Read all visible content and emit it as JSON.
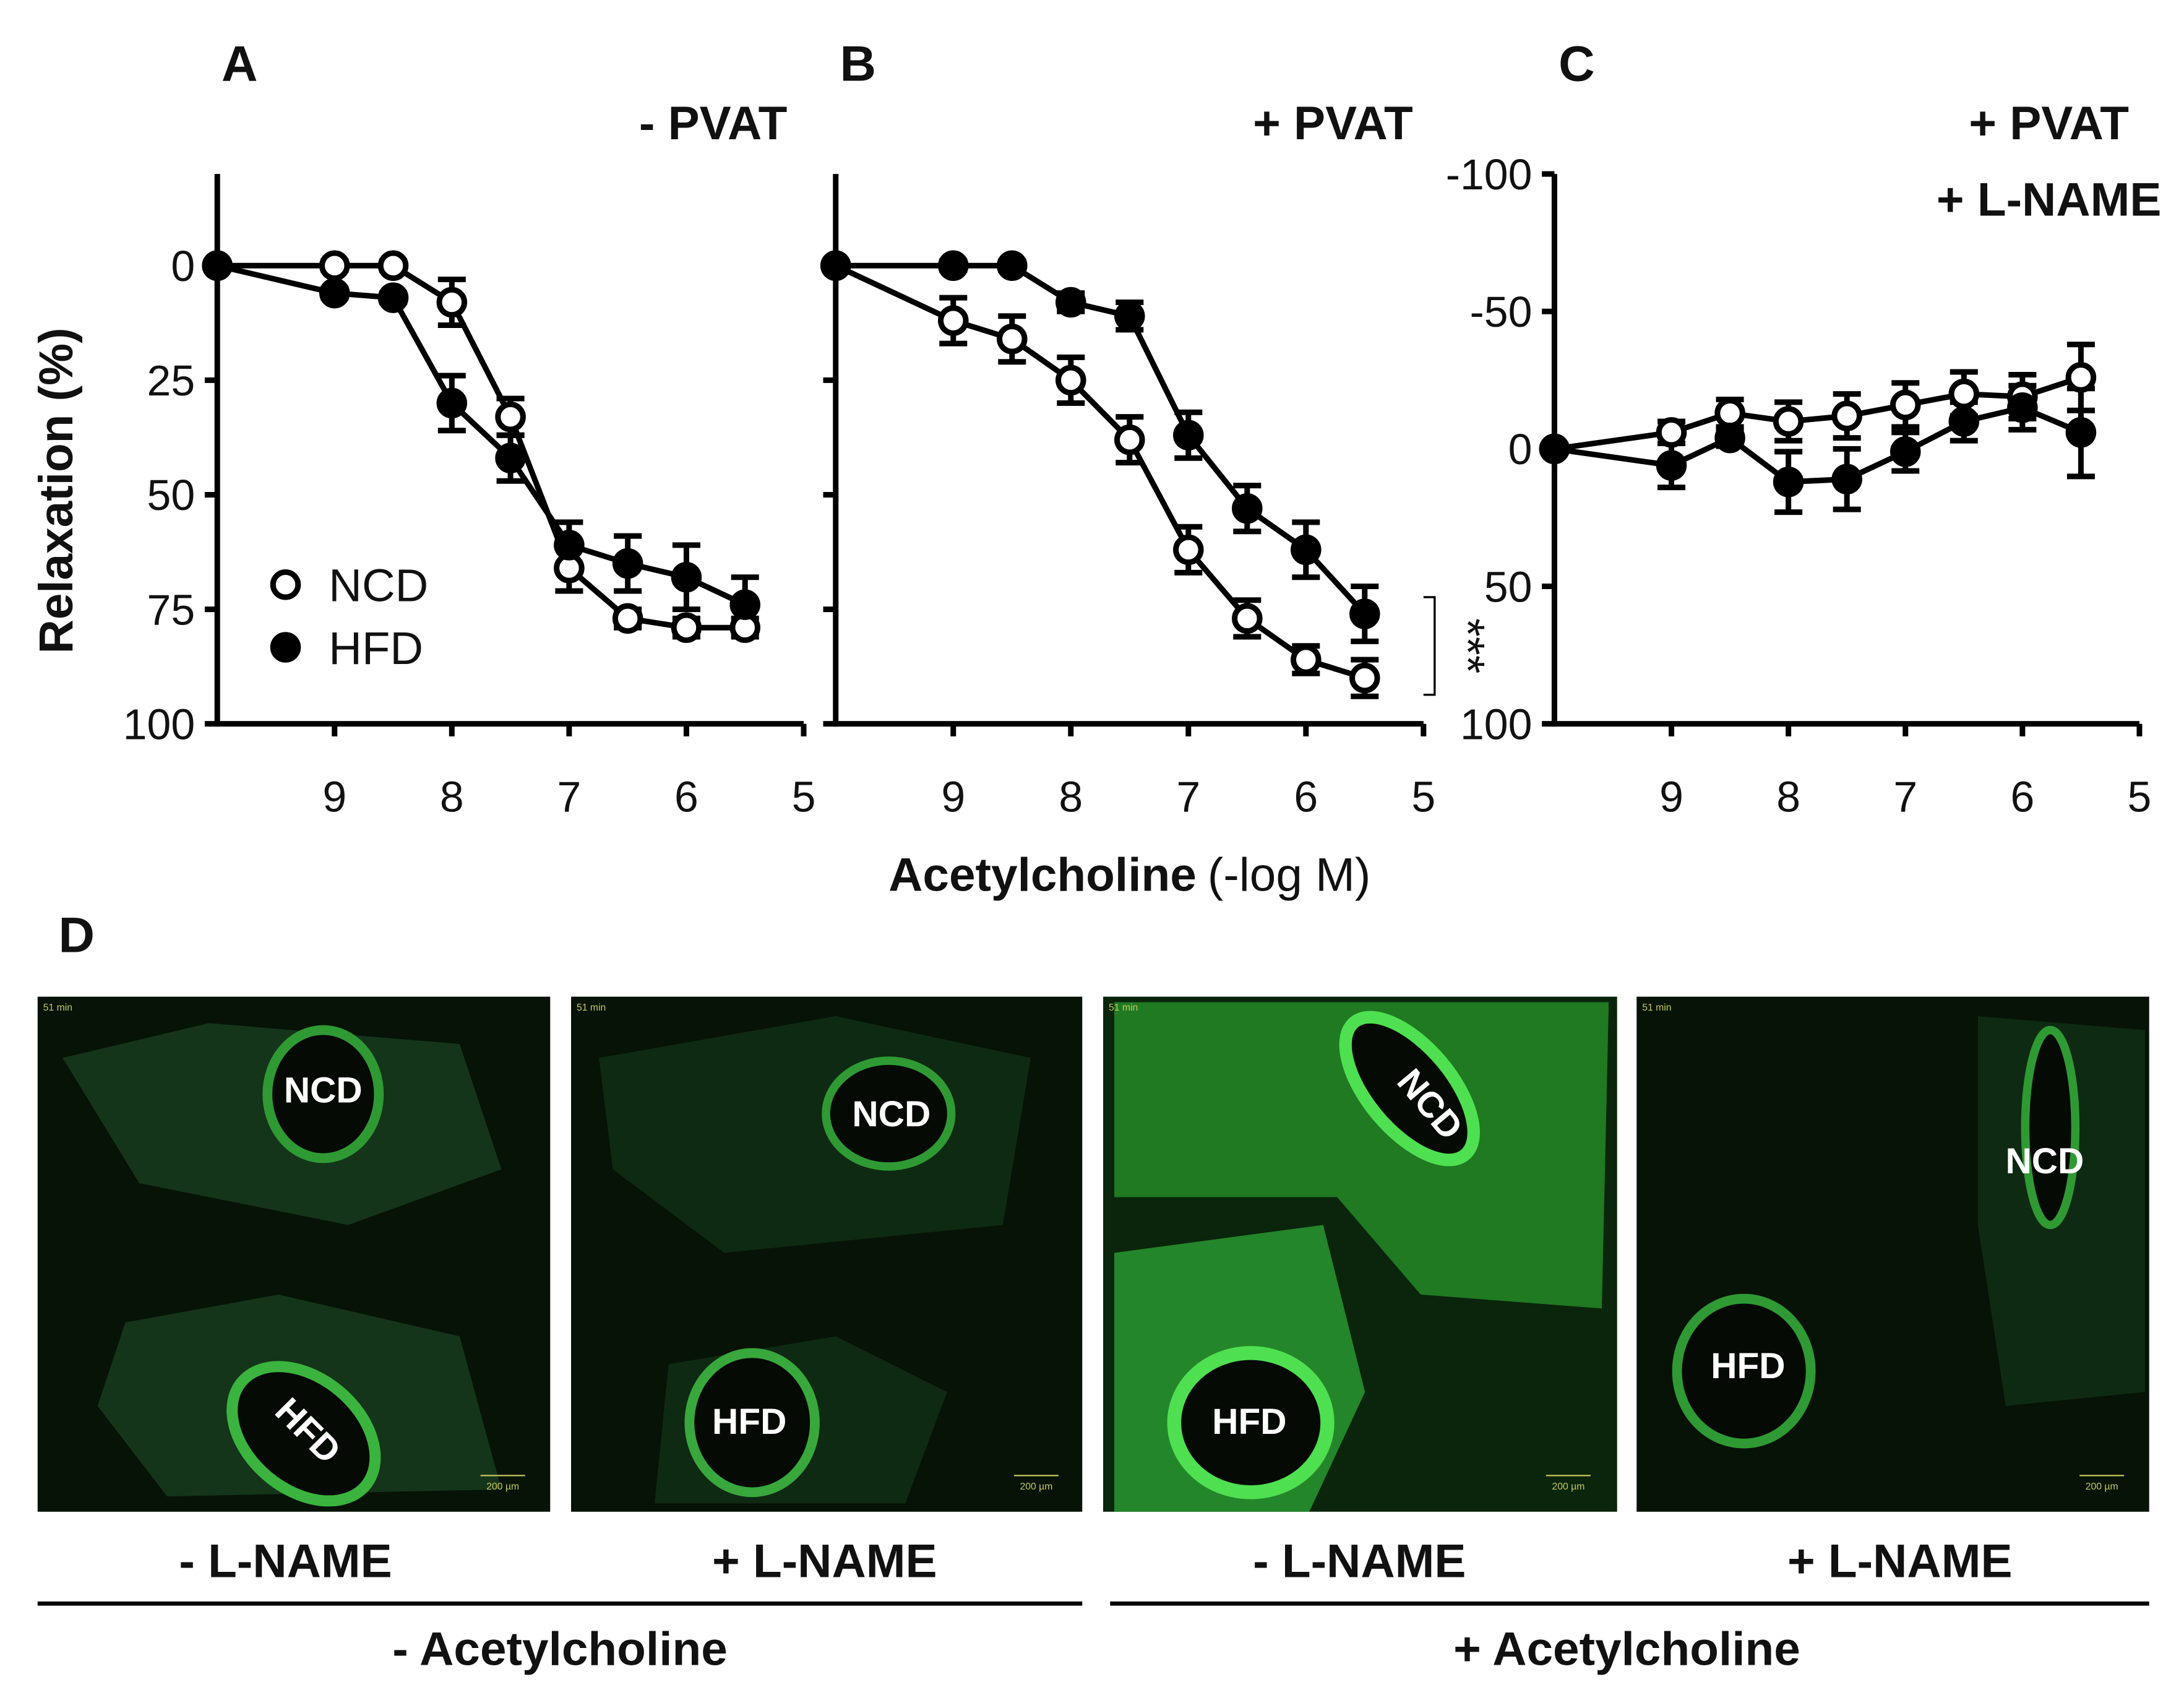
{
  "chart_data": [
    {
      "type": "line",
      "panel": "A",
      "title": [
        "- PVAT"
      ],
      "ylabel": "Relaxation (%)",
      "x": [
        10,
        9,
        8.5,
        8,
        7.5,
        7,
        6.5,
        6,
        5.5
      ],
      "xlim": [
        10,
        5
      ],
      "xticks": [
        9,
        8,
        7,
        6,
        5
      ],
      "ylim": [
        100,
        -20
      ],
      "yticks": [
        0,
        25,
        50,
        75,
        100
      ],
      "show_ytick_labels": true,
      "legend": "lower left",
      "series": [
        {
          "name": "NCD",
          "color": "#000000",
          "marker": "open",
          "values": [
            0,
            0,
            0,
            8,
            33,
            66,
            77,
            79,
            79
          ],
          "errors": [
            0,
            1,
            1,
            5,
            4,
            5,
            2,
            2,
            2
          ]
        },
        {
          "name": "HFD",
          "color": "#000000",
          "marker": "filled",
          "values": [
            0,
            6,
            7,
            30,
            42,
            61,
            65,
            68,
            74
          ],
          "errors": [
            0,
            1,
            1,
            6,
            5,
            5,
            6,
            7,
            6
          ]
        }
      ]
    },
    {
      "type": "line",
      "panel": "B",
      "title": [
        "+ PVAT"
      ],
      "xlabel": [
        "Acetylcholine",
        "(-log M)"
      ],
      "x": [
        10,
        9,
        8.5,
        8,
        7.5,
        7,
        6.5,
        6,
        5.5
      ],
      "xlim": [
        10,
        5
      ],
      "xticks": [
        9,
        8,
        7,
        6,
        5
      ],
      "ylim": [
        100,
        -20
      ],
      "yticks": [
        0,
        25,
        50,
        75,
        100
      ],
      "show_ytick_labels": false,
      "annotation": "***",
      "series": [
        {
          "name": "NCD",
          "color": "#000000",
          "marker": "open",
          "values": [
            0,
            12,
            16,
            25,
            38,
            62,
            77,
            86,
            90
          ],
          "errors": [
            0,
            5,
            5,
            5,
            5,
            5,
            4,
            3,
            4
          ]
        },
        {
          "name": "HFD",
          "color": "#000000",
          "marker": "filled",
          "values": [
            0,
            0,
            0,
            8,
            11,
            37,
            53,
            62,
            76
          ],
          "errors": [
            0,
            1,
            1,
            2,
            3,
            5,
            5,
            6,
            6
          ]
        }
      ]
    },
    {
      "type": "line",
      "panel": "C",
      "title": [
        "+ PVAT",
        "+ L-NAME"
      ],
      "x": [
        10,
        9,
        8.5,
        8,
        7.5,
        7,
        6.5,
        6,
        5.5
      ],
      "xlim": [
        10,
        5
      ],
      "xticks": [
        9,
        8,
        7,
        6,
        5
      ],
      "ylim": [
        100,
        -100
      ],
      "yticks": [
        -100,
        -50,
        0,
        50,
        100
      ],
      "show_ytick_labels": true,
      "series": [
        {
          "name": "NCD",
          "color": "#000000",
          "marker": "open",
          "values": [
            0,
            -6,
            -13,
            -10,
            -12,
            -16,
            -20,
            -19,
            -26
          ],
          "errors": [
            0,
            4,
            5,
            7,
            8,
            8,
            8,
            8,
            12
          ]
        },
        {
          "name": "HFD",
          "color": "#000000",
          "marker": "filled",
          "values": [
            0,
            6,
            -4,
            12,
            11,
            1,
            -10,
            -15,
            -6
          ],
          "errors": [
            0,
            8,
            3,
            11,
            11,
            7,
            7,
            8,
            16
          ]
        }
      ]
    }
  ],
  "panel_d": {
    "label": "D",
    "images": [
      {
        "timestamp": "51 min",
        "scale_bar": "200 µm",
        "labels": [
          "NCD",
          "HFD"
        ],
        "condition": "- L-NAME"
      },
      {
        "timestamp": "51 min",
        "scale_bar": "200 µm",
        "labels": [
          "NCD",
          "HFD"
        ],
        "condition": "+ L-NAME"
      },
      {
        "timestamp": "51 min",
        "scale_bar": "200 µm",
        "labels": [
          "NCD",
          "HFD"
        ],
        "condition": "- L-NAME"
      },
      {
        "timestamp": "51 min",
        "scale_bar": "200 µm",
        "labels": [
          "NCD",
          "HFD"
        ],
        "condition": "+ L-NAME"
      }
    ],
    "groups": [
      "- Acetylcholine",
      "+ Acetylcholine"
    ]
  }
}
